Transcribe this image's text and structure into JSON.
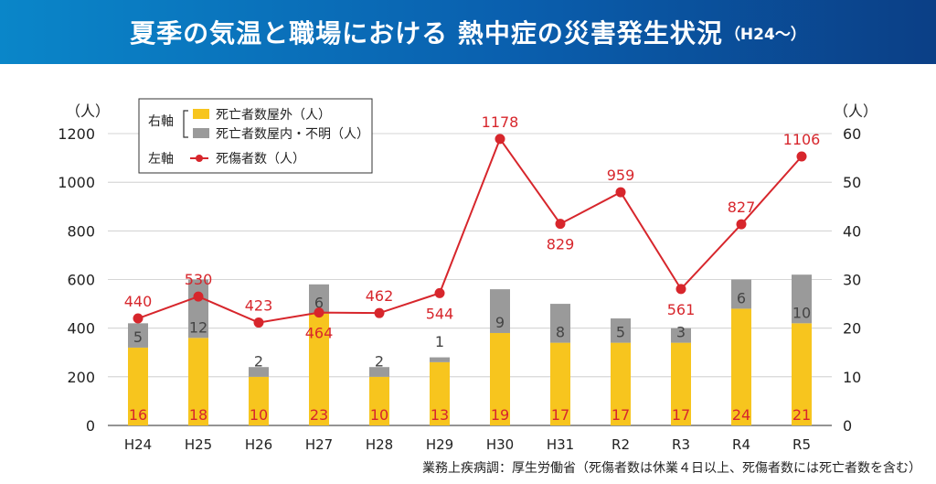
{
  "title": {
    "main": "夏季の気温と職場における 熱中症の災害発生状況",
    "sub": "（H24〜）"
  },
  "source": "業務上疾病調：厚生労働省（死傷者数は休業４日以上、死傷者数には死亡者数を含む）",
  "colors": {
    "outdoor_deaths": "#f7c51e",
    "indoor_deaths": "#9a9a9a",
    "casualties_line": "#d7262c",
    "header": "#0a5fae"
  },
  "chart_data": {
    "type": "bar",
    "stacked": true,
    "categories": [
      "H24",
      "H25",
      "H26",
      "H27",
      "H28",
      "H29",
      "H30",
      "H31",
      "R2",
      "R3",
      "R4",
      "R5"
    ],
    "series": [
      {
        "name": "死亡者数屋外（人）",
        "axis": "right",
        "type": "bar",
        "values": [
          16,
          18,
          10,
          23,
          10,
          13,
          19,
          17,
          17,
          17,
          24,
          21
        ]
      },
      {
        "name": "死亡者数屋内・不明（人）",
        "axis": "right",
        "type": "bar",
        "values": [
          5,
          12,
          2,
          6,
          2,
          1,
          9,
          8,
          5,
          3,
          6,
          10
        ]
      },
      {
        "name": "死傷者数（人）",
        "axis": "left",
        "type": "line",
        "values": [
          440,
          530,
          423,
          464,
          462,
          544,
          1178,
          829,
          959,
          561,
          827,
          1106
        ]
      }
    ],
    "y_left": {
      "label": "（人）",
      "lim": [
        0,
        1200
      ],
      "ticks": [
        0,
        200,
        400,
        600,
        800,
        1000,
        1200
      ]
    },
    "y_right": {
      "label": "（人）",
      "lim": [
        0,
        60
      ],
      "ticks": [
        0,
        10,
        20,
        30,
        40,
        50,
        60
      ]
    },
    "legend": {
      "placement": "top-left",
      "right_axis_label": "右軸",
      "left_axis_label": "左軸"
    },
    "grid": true
  }
}
